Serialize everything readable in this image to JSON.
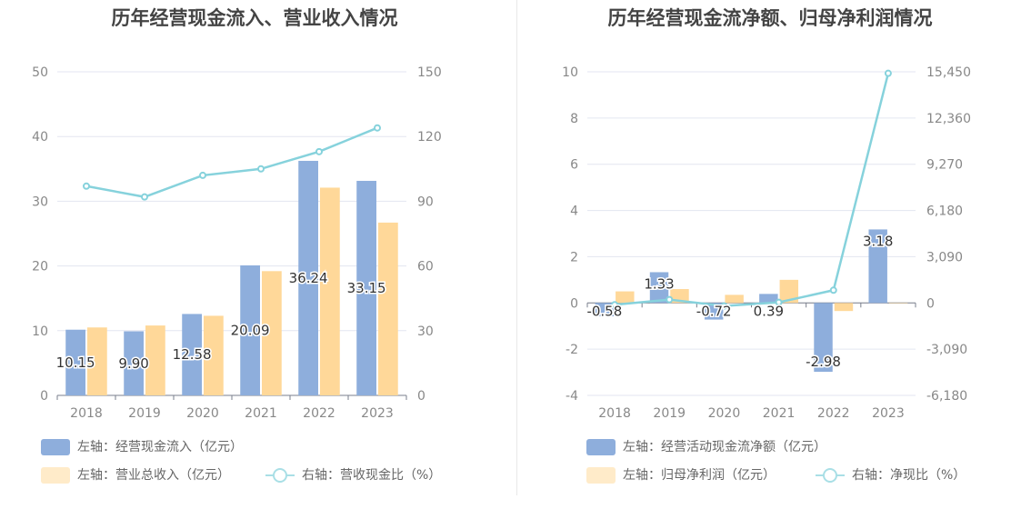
{
  "chart_data": [
    {
      "type": "bar+line",
      "title": "历年经营现金流入、营业收入情况",
      "categories": [
        "2018",
        "2019",
        "2020",
        "2021",
        "2022",
        "2023"
      ],
      "left_axis": {
        "min": 0,
        "max": 50,
        "ticks": [
          "0",
          "10",
          "20",
          "30",
          "40",
          "50"
        ]
      },
      "right_axis": {
        "min": 0,
        "max": 150,
        "ticks": [
          "0",
          "30",
          "60",
          "90",
          "120",
          "150"
        ]
      },
      "series": [
        {
          "name": "左轴：经营现金流入（亿元）",
          "kind": "bar",
          "axis": "left",
          "color": "#8eaedc",
          "values": [
            10.15,
            9.9,
            12.58,
            20.09,
            36.24,
            33.15
          ],
          "labels": [
            "10.15",
            "9.90",
            "12.58",
            "20.09",
            "36.24",
            "33.15"
          ]
        },
        {
          "name": "左轴：营业总收入（亿元）",
          "kind": "bar",
          "axis": "left",
          "color": "#ffd899",
          "values": [
            10.5,
            10.8,
            12.3,
            19.2,
            32.1,
            26.7
          ]
        },
        {
          "name": "右轴：营收现金比（%）",
          "kind": "line",
          "axis": "right",
          "color": "#86d2dc",
          "values": [
            97,
            92,
            102,
            105,
            113,
            124
          ]
        }
      ]
    },
    {
      "type": "bar+line",
      "title": "历年经营现金流净额、归母净利润情况",
      "categories": [
        "2018",
        "2019",
        "2020",
        "2021",
        "2022",
        "2023"
      ],
      "left_axis": {
        "min": -4,
        "max": 10,
        "ticks": [
          "-4",
          "-2",
          "0",
          "2",
          "4",
          "6",
          "8",
          "10"
        ]
      },
      "right_axis": {
        "min": -6180,
        "max": 15450,
        "ticks": [
          "-6,180",
          "-3,090",
          "0",
          "3,090",
          "6,180",
          "9,270",
          "12,360",
          "15,450"
        ]
      },
      "series": [
        {
          "name": "左轴：经营活动现金流净额（亿元）",
          "kind": "bar",
          "axis": "left",
          "color": "#8eaedc",
          "values": [
            -0.58,
            1.33,
            -0.72,
            0.39,
            -2.98,
            3.18
          ],
          "labels": [
            "-0.58",
            "1.33",
            "-0.72",
            "0.39",
            "-2.98",
            "3.18"
          ]
        },
        {
          "name": "左轴：归母净利润（亿元）",
          "kind": "bar",
          "axis": "left",
          "color": "#ffd899",
          "values": [
            0.5,
            0.6,
            0.35,
            1.0,
            -0.35,
            0.0
          ]
        },
        {
          "name": "右轴：净现比（%）",
          "kind": "line",
          "axis": "right",
          "color": "#86d2dc",
          "values": [
            -116,
            222,
            -206,
            39,
            851,
            15350
          ]
        }
      ]
    }
  ]
}
